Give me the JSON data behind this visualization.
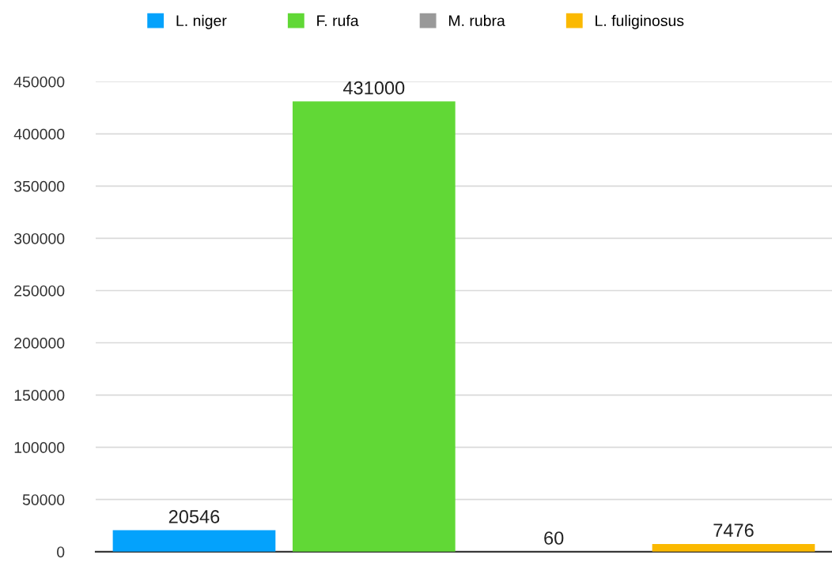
{
  "chart_data": {
    "type": "bar",
    "categories": [
      null
    ],
    "series": [
      {
        "name": "L. niger",
        "color": "#04a2fc",
        "values": [
          20546
        ]
      },
      {
        "name": "F. rufa",
        "color": "#61d836",
        "values": [
          431000
        ]
      },
      {
        "name": "M. rubra",
        "color": "#999999",
        "values": [
          60
        ]
      },
      {
        "name": "L. fuliginosus",
        "color": "#fbb900",
        "values": [
          7476
        ]
      }
    ],
    "ylim": [
      0,
      450000
    ],
    "yticks": [
      0,
      50000,
      100000,
      150000,
      200000,
      250000,
      300000,
      350000,
      400000,
      450000
    ],
    "grid": "y",
    "legend": "top",
    "data_labels": true
  }
}
